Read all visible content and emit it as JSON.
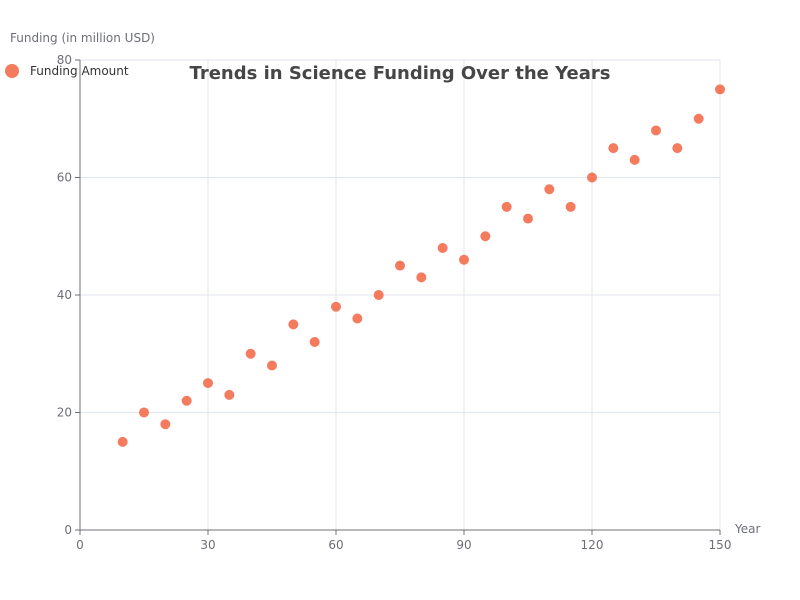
{
  "chart_data": {
    "type": "scatter",
    "title": "Trends in Science Funding Over the Years",
    "xlabel": "Year",
    "ylabel": "Funding (in million USD)",
    "xlim": [
      0,
      150
    ],
    "ylim": [
      0,
      80
    ],
    "x_ticks": [
      "0",
      "30",
      "60",
      "90",
      "120",
      "150"
    ],
    "y_ticks": [
      "0",
      "20",
      "40",
      "60",
      "80"
    ],
    "grid": true,
    "legend_position": "top-left",
    "series": [
      {
        "name": "Funding Amount",
        "color": "#f47b5e",
        "points": [
          [
            10,
            15
          ],
          [
            15,
            20
          ],
          [
            20,
            18
          ],
          [
            25,
            22
          ],
          [
            30,
            25
          ],
          [
            35,
            23
          ],
          [
            40,
            30
          ],
          [
            45,
            28
          ],
          [
            50,
            35
          ],
          [
            55,
            32
          ],
          [
            60,
            38
          ],
          [
            65,
            36
          ],
          [
            70,
            40
          ],
          [
            75,
            45
          ],
          [
            80,
            43
          ],
          [
            85,
            48
          ],
          [
            90,
            46
          ],
          [
            95,
            50
          ],
          [
            100,
            55
          ],
          [
            105,
            53
          ],
          [
            110,
            58
          ],
          [
            115,
            55
          ],
          [
            120,
            60
          ],
          [
            125,
            65
          ],
          [
            130,
            63
          ],
          [
            135,
            68
          ],
          [
            140,
            65
          ],
          [
            145,
            70
          ],
          [
            150,
            75
          ]
        ]
      }
    ]
  }
}
